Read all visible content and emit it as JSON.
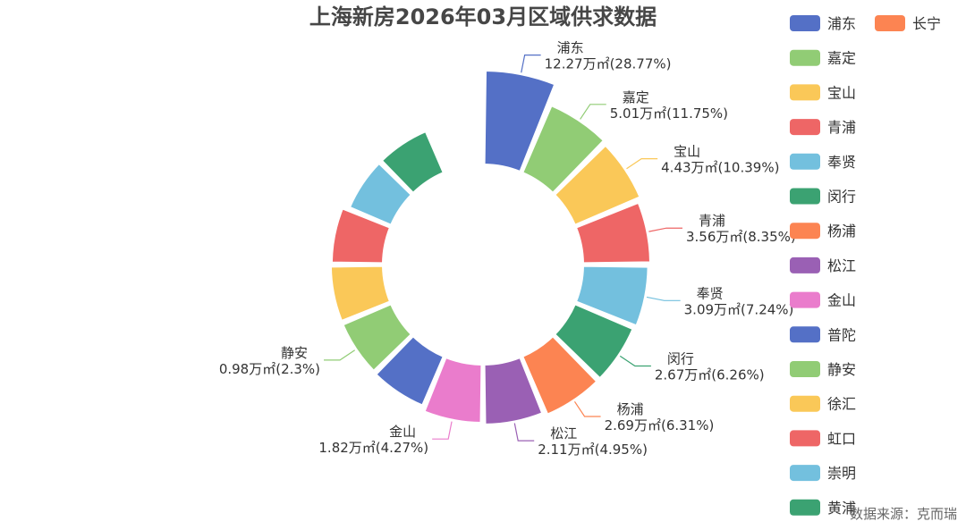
{
  "chart_data": {
    "type": "pie",
    "title": "上海新房2026年03月区域供求数据",
    "unit": "万㎡",
    "slices": [
      {
        "name": "浦东",
        "value": 12.27,
        "percent": "28.77%",
        "color": "#5470c6"
      },
      {
        "name": "嘉定",
        "value": 5.01,
        "percent": "11.75%",
        "color": "#91cc75"
      },
      {
        "name": "宝山",
        "value": 4.43,
        "percent": "10.39%",
        "color": "#fac858"
      },
      {
        "name": "青浦",
        "value": 3.56,
        "percent": "8.35%",
        "color": "#ee6666"
      },
      {
        "name": "奉贤",
        "value": 3.09,
        "percent": "7.24%",
        "color": "#73c0de"
      },
      {
        "name": "闵行",
        "value": 2.67,
        "percent": "6.26%",
        "color": "#3ba272"
      },
      {
        "name": "杨浦",
        "value": 2.69,
        "percent": "6.31%",
        "color": "#fc8452"
      },
      {
        "name": "松江",
        "value": 2.11,
        "percent": "4.95%",
        "color": "#9a60b4"
      },
      {
        "name": "金山",
        "value": 1.82,
        "percent": "4.27%",
        "color": "#ea7ccc"
      },
      {
        "name": "普陀",
        "value": 1.1,
        "percent": "",
        "color": "#5470c6"
      },
      {
        "name": "静安",
        "value": 0.98,
        "percent": "2.3%",
        "color": "#91cc75"
      },
      {
        "name": "徐汇",
        "value": 0.95,
        "percent": "",
        "color": "#fac858"
      },
      {
        "name": "虹口",
        "value": 0.85,
        "percent": "",
        "color": "#ee6666"
      },
      {
        "name": "崇明",
        "value": 0.3,
        "percent": "",
        "color": "#73c0de"
      },
      {
        "name": "黄浦",
        "value": 0.3,
        "percent": "",
        "color": "#3ba272"
      },
      {
        "name": "长宁",
        "value": 0.0,
        "percent": "",
        "color": "#fc8452"
      }
    ],
    "legend": [
      "浦东",
      "长宁",
      "嘉定",
      "宝山",
      "青浦",
      "奉贤",
      "闵行",
      "杨浦",
      "松江",
      "金山",
      "普陀",
      "静安",
      "徐汇",
      "虹口",
      "崇明",
      "黄浦"
    ],
    "legend_placement": "right"
  },
  "source_text": "数据来源：克而瑞"
}
